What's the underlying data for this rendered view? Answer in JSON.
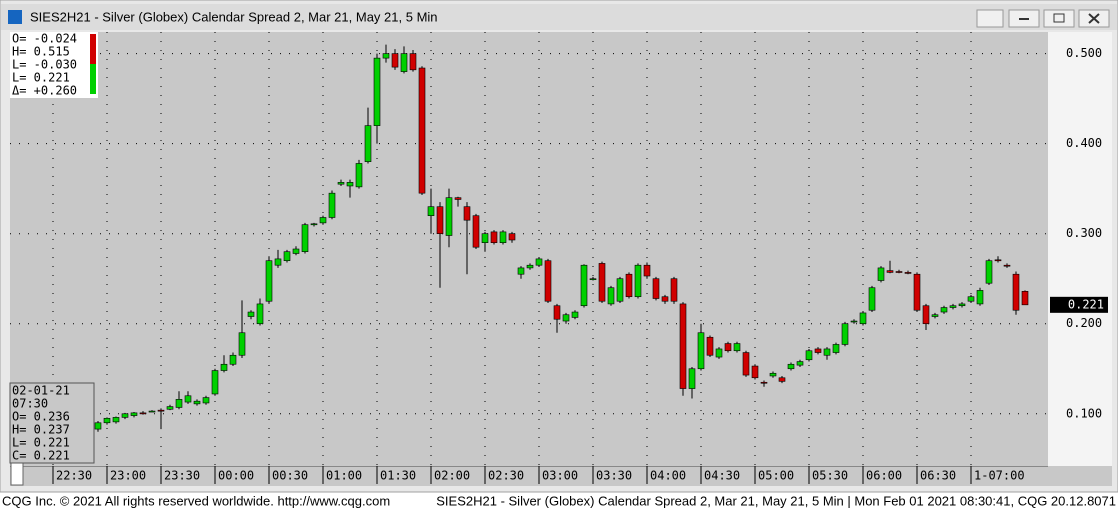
{
  "window_title": "SIES2H21 - Silver (Globex) Calendar Spread 2, Mar 21, May 21, 5 Min",
  "footer_left": "CQG Inc. © 2021 All rights reserved worldwide. http://www.cqg.com",
  "footer_right": "SIES2H21 - Silver (Globex) Calendar Spread 2, Mar 21, May 21, 5 Min | Mon Feb 01 2021 08:30:41, CQG 20.12.8071",
  "info_top": [
    "O= -0.024",
    "H=  0.515",
    "L= -0.030",
    "L=  0.221",
    "Δ= +0.260"
  ],
  "info_bottom": [
    "02-01-21",
    "07:30",
    "O=   0.236",
    "H=   0.237",
    "L=   0.221",
    "C=   0.221"
  ],
  "chart_data": {
    "type": "candlestick",
    "categories": [
      "22:30",
      null,
      null,
      null,
      null,
      null,
      "23:00",
      null,
      null,
      null,
      null,
      null,
      "23:30",
      null,
      null,
      null,
      null,
      null,
      "00:00",
      null,
      null,
      null,
      null,
      null,
      "00:30",
      null,
      null,
      null,
      null,
      null,
      "01:00",
      null,
      null,
      null,
      null,
      null,
      "01:30",
      null,
      null,
      null,
      null,
      null,
      "02:00",
      null,
      null,
      null,
      null,
      null,
      "02:30",
      null,
      null,
      null,
      null,
      null,
      "03:00",
      null,
      null,
      null,
      null,
      null,
      "03:30",
      null,
      null,
      null,
      null,
      null,
      "04:00",
      null,
      null,
      null,
      null,
      null,
      "04:30",
      null,
      null,
      null,
      null,
      null,
      "05:00",
      null,
      null,
      null,
      null,
      null,
      "05:30",
      null,
      null,
      null,
      null,
      null,
      "06:00",
      null,
      null,
      null,
      null,
      null,
      "06:30",
      null,
      null,
      null,
      null,
      null,
      "1-07:00",
      null,
      null,
      null,
      null,
      null,
      null
    ],
    "open": [
      null,
      null,
      null,
      null,
      null,
      0.083,
      0.09,
      0.091,
      0.096,
      0.098,
      0.101,
      0.103,
      0.104,
      0.105,
      0.107,
      0.113,
      0.111,
      0.112,
      0.122,
      0.148,
      0.155,
      0.165,
      0.208,
      0.2,
      0.225,
      0.265,
      0.27,
      0.278,
      0.28,
      0.31,
      0.312,
      0.318,
      0.355,
      0.353,
      0.352,
      0.38,
      0.42,
      0.495,
      0.5,
      0.48,
      0.5,
      0.484,
      0.32,
      0.33,
      0.298,
      0.34,
      0.33,
      0.32,
      0.29,
      0.302,
      0.29,
      0.3,
      0.255,
      0.262,
      0.265,
      0.27,
      0.22,
      0.203,
      0.207,
      0.22,
      0.25,
      0.267,
      0.222,
      0.225,
      0.255,
      0.23,
      0.265,
      0.25,
      0.23,
      0.25,
      0.222,
      0.128,
      0.15,
      0.185,
      0.163,
      0.178,
      0.17,
      0.168,
      0.153,
      0.135,
      0.142,
      0.14,
      0.15,
      0.154,
      0.16,
      0.172,
      0.165,
      0.168,
      0.177,
      0.202,
      0.2,
      0.215,
      0.248,
      0.259,
      0.258,
      0.257,
      0.255,
      0.22,
      0.208,
      0.213,
      0.218,
      0.22,
      0.225,
      0.222,
      0.245,
      0.271,
      0.265,
      0.255,
      0.236
    ],
    "high": [
      null,
      null,
      null,
      null,
      null,
      0.092,
      0.096,
      0.097,
      0.101,
      0.102,
      0.103,
      0.104,
      0.106,
      0.11,
      0.125,
      0.125,
      0.116,
      0.12,
      0.15,
      0.165,
      0.168,
      0.226,
      0.215,
      0.228,
      0.275,
      0.282,
      0.282,
      0.286,
      0.312,
      0.312,
      0.32,
      0.348,
      0.36,
      0.36,
      0.382,
      0.44,
      0.5,
      0.51,
      0.505,
      0.508,
      0.504,
      0.486,
      0.35,
      0.335,
      0.35,
      0.341,
      0.335,
      0.322,
      0.302,
      0.304,
      0.304,
      0.302,
      0.264,
      0.267,
      0.274,
      0.272,
      0.222,
      0.212,
      0.215,
      0.266,
      0.252,
      0.269,
      0.242,
      0.252,
      0.257,
      0.267,
      0.268,
      0.252,
      0.232,
      0.252,
      0.224,
      0.152,
      0.2,
      0.187,
      0.174,
      0.18,
      0.18,
      0.17,
      0.155,
      0.137,
      0.147,
      0.142,
      0.157,
      0.16,
      0.172,
      0.174,
      0.174,
      0.179,
      0.202,
      0.205,
      0.214,
      0.242,
      0.264,
      0.27,
      0.26,
      0.259,
      0.257,
      0.222,
      0.212,
      0.22,
      0.222,
      0.224,
      0.232,
      0.24,
      0.272,
      0.275,
      0.267,
      0.258,
      0.237
    ],
    "low": [
      null,
      null,
      null,
      null,
      null,
      0.08,
      0.088,
      0.089,
      0.094,
      0.096,
      0.099,
      0.102,
      0.083,
      0.104,
      0.105,
      0.111,
      0.109,
      0.11,
      0.12,
      0.146,
      0.153,
      0.162,
      0.205,
      0.198,
      0.222,
      0.262,
      0.268,
      0.276,
      0.278,
      0.308,
      0.31,
      0.316,
      0.353,
      0.34,
      0.35,
      0.378,
      0.4,
      0.49,
      0.482,
      0.478,
      0.48,
      0.343,
      0.3,
      0.24,
      0.285,
      0.33,
      0.255,
      0.283,
      0.28,
      0.288,
      0.288,
      0.29,
      0.25,
      0.26,
      0.263,
      0.223,
      0.19,
      0.2,
      0.205,
      0.218,
      0.248,
      0.223,
      0.22,
      0.223,
      0.228,
      0.228,
      0.25,
      0.226,
      0.222,
      0.222,
      0.12,
      0.117,
      0.148,
      0.163,
      0.161,
      0.168,
      0.168,
      0.141,
      0.138,
      0.13,
      0.14,
      0.134,
      0.148,
      0.152,
      0.158,
      0.166,
      0.16,
      0.166,
      0.175,
      0.2,
      0.198,
      0.213,
      0.246,
      0.256,
      0.256,
      0.255,
      0.213,
      0.193,
      0.206,
      0.211,
      0.216,
      0.218,
      0.223,
      0.22,
      0.243,
      0.268,
      0.262,
      0.21,
      0.221
    ],
    "close": [
      null,
      null,
      null,
      null,
      null,
      0.09,
      0.095,
      0.096,
      0.1,
      0.101,
      0.1,
      0.103,
      0.103,
      0.108,
      0.116,
      0.12,
      0.114,
      0.118,
      0.148,
      0.155,
      0.165,
      0.19,
      0.213,
      0.222,
      0.27,
      0.272,
      0.28,
      0.283,
      0.31,
      0.311,
      0.318,
      0.345,
      0.357,
      0.357,
      0.378,
      0.42,
      0.495,
      0.5,
      0.485,
      0.5,
      0.482,
      0.345,
      0.33,
      0.3,
      0.34,
      0.338,
      0.315,
      0.285,
      0.3,
      0.29,
      0.302,
      0.293,
      0.262,
      0.265,
      0.272,
      0.225,
      0.205,
      0.21,
      0.213,
      0.265,
      0.25,
      0.225,
      0.24,
      0.25,
      0.23,
      0.265,
      0.253,
      0.228,
      0.225,
      0.225,
      0.128,
      0.15,
      0.19,
      0.165,
      0.172,
      0.17,
      0.178,
      0.143,
      0.14,
      0.134,
      0.145,
      0.136,
      0.155,
      0.158,
      0.17,
      0.168,
      0.172,
      0.177,
      0.2,
      0.203,
      0.212,
      0.24,
      0.262,
      0.257,
      0.257,
      0.256,
      0.215,
      0.2,
      0.21,
      0.218,
      0.22,
      0.222,
      0.23,
      0.237,
      0.27,
      0.27,
      0.264,
      0.215,
      0.221
    ],
    "up_color": "#00d000",
    "down_color": "#d00000",
    "ylim": [
      0.042,
      0.524
    ],
    "yticks": [
      {
        "value": 0.1,
        "label": "0.100"
      },
      {
        "value": 0.2,
        "label": "0.200"
      },
      {
        "value": 0.3,
        "label": "0.300"
      },
      {
        "value": 0.4,
        "label": "0.400"
      },
      {
        "value": 0.5,
        "label": "0.500"
      }
    ],
    "last_price": {
      "value": 0.221,
      "label": "0.221"
    },
    "grid": true
  }
}
